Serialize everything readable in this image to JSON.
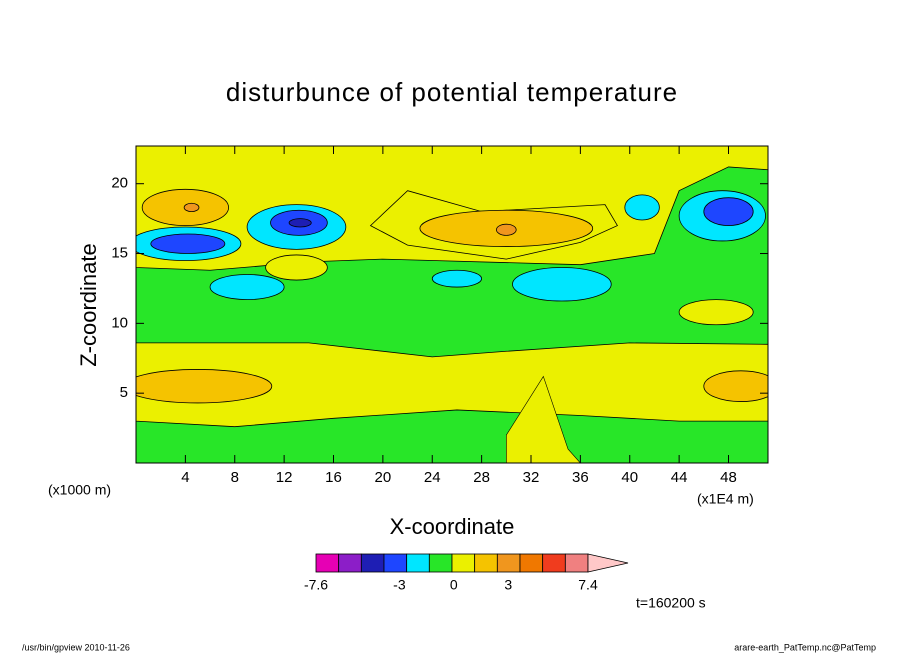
{
  "chart_data": {
    "type": "contour",
    "title": "disturbunce of potential temperature",
    "x_label": "X-coordinate",
    "y_label": "Z-coordinate",
    "x_unit": "(x1000 m)",
    "x_scale": "(x1E4 m)",
    "xlim": [
      0,
      51.2
    ],
    "ylim": [
      0,
      22.7
    ],
    "xticks": [
      4,
      8,
      12,
      16,
      20,
      24,
      28,
      32,
      36,
      40,
      44,
      48
    ],
    "yticks": [
      5,
      10,
      15,
      20
    ],
    "colorbar": {
      "colors": [
        "#e600b4",
        "#8c1ec8",
        "#1e1eb4",
        "#1e46ff",
        "#00e6ff",
        "#28e628",
        "#ebf000",
        "#f5c300",
        "#f0961e",
        "#f07800",
        "#f03c1e",
        "#f08080",
        "#ffc8c8"
      ],
      "ticks": [
        -7.6,
        -3,
        0,
        3,
        7.4
      ]
    },
    "time_label": "t=160200 s",
    "footer_left": "/usr/bin/gpview  2010-11-26",
    "footer_right": "arare-earth_PatTemp.nc@PatTemp"
  }
}
